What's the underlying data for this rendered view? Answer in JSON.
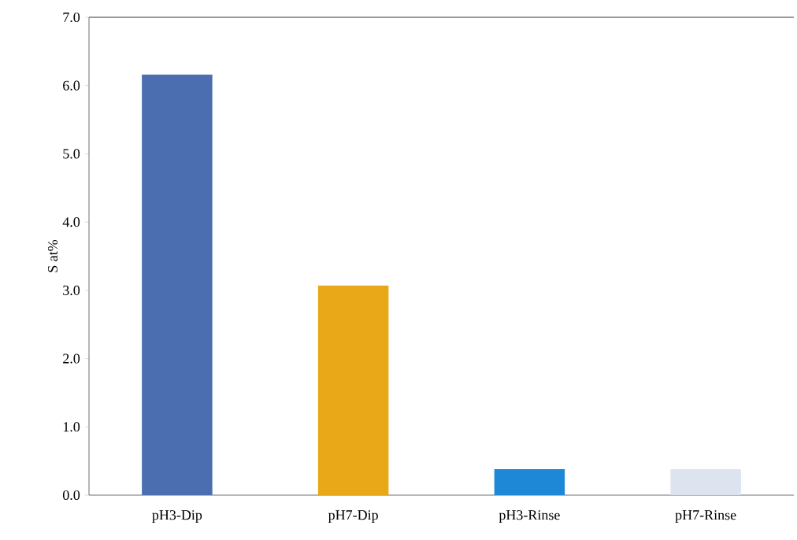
{
  "chart_data": {
    "type": "bar",
    "ylabel": "S at%",
    "categories": [
      "pH3-Dip",
      "pH7-Dip",
      "pH3-Rinse",
      "pH7-Rinse"
    ],
    "values": [
      6.16,
      3.07,
      0.38,
      0.38
    ],
    "colors": [
      "#4a6eb0",
      "#e8a817",
      "#1e88d6",
      "#dde4ef"
    ],
    "ylim": [
      0,
      7
    ],
    "yticks": [
      {
        "value": 0,
        "label": "0.0"
      },
      {
        "value": 1,
        "label": "1.0"
      },
      {
        "value": 2,
        "label": "2.0"
      },
      {
        "value": 3,
        "label": "3.0"
      },
      {
        "value": 4,
        "label": "4.0"
      },
      {
        "value": 5,
        "label": "5.0"
      },
      {
        "value": 6,
        "label": "6.0"
      },
      {
        "value": 7,
        "label": "7.0"
      }
    ],
    "grid": false
  }
}
